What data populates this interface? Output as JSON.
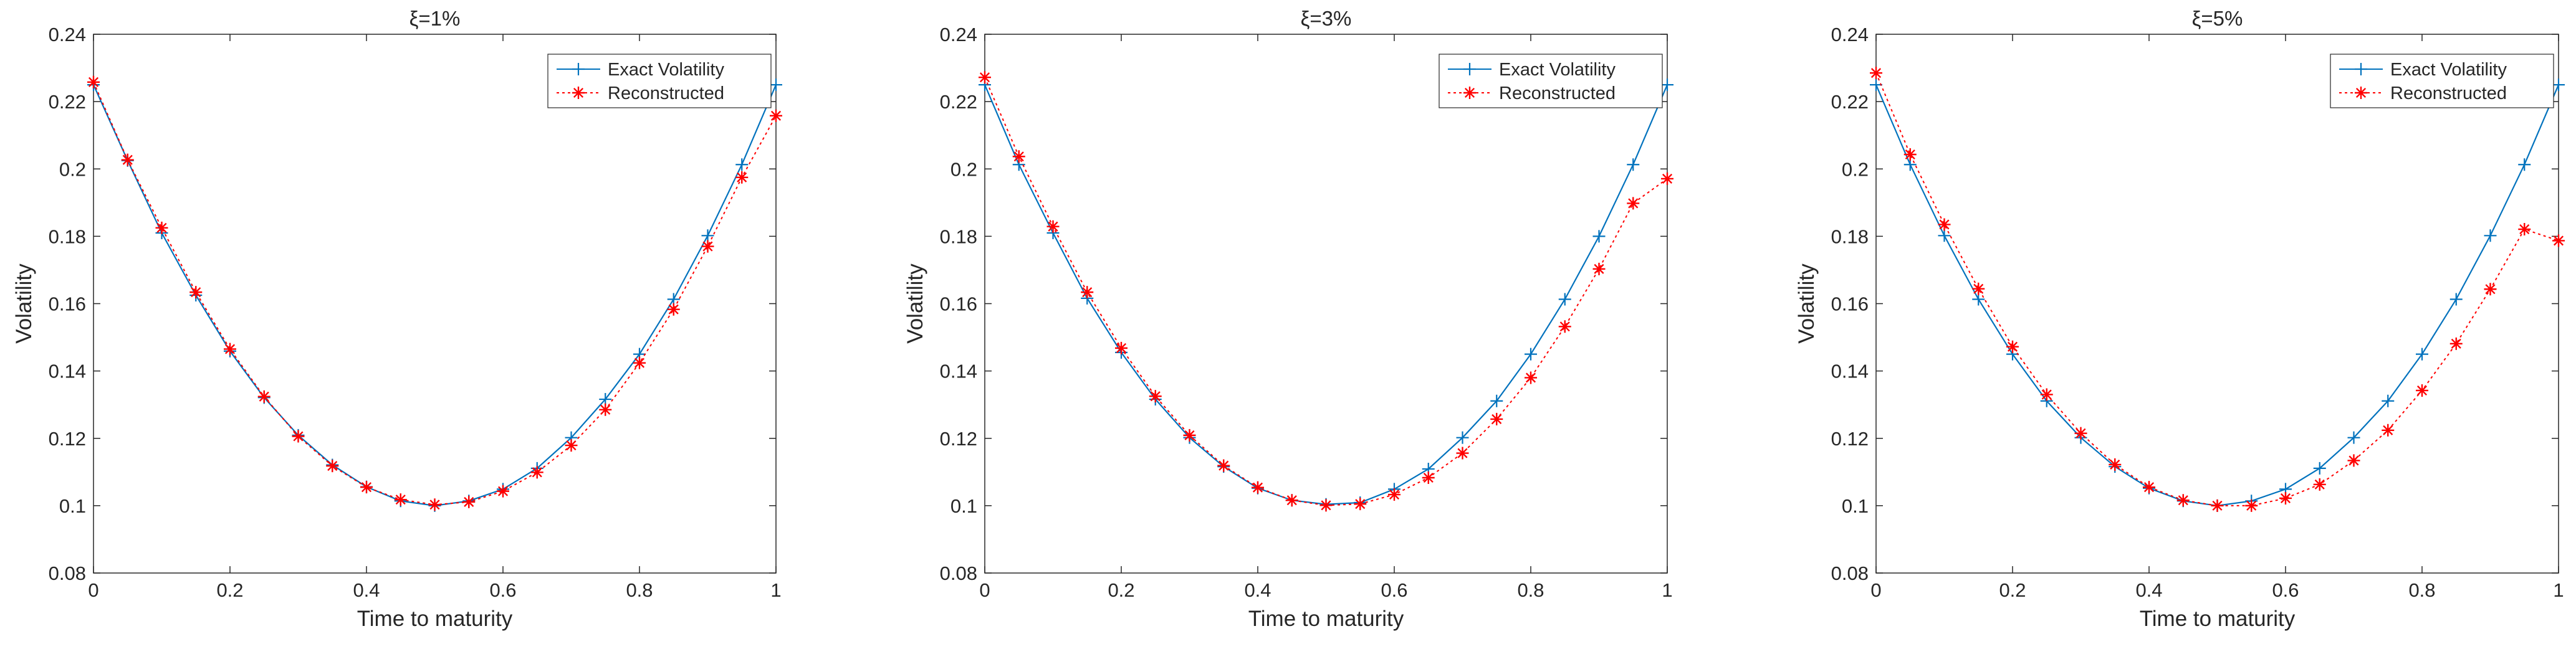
{
  "chart_data": [
    {
      "type": "line",
      "title": "ξ=1%",
      "xlabel": "Time to maturity",
      "ylabel": "Volatility",
      "xlim": [
        0,
        1
      ],
      "ylim": [
        0.08,
        0.24
      ],
      "xticks": [
        "0",
        "0.2",
        "0.4",
        "0.6",
        "0.8",
        "1"
      ],
      "yticks": [
        "0.08",
        "0.1",
        "0.12",
        "0.14",
        "0.16",
        "0.18",
        "0.2",
        "0.22",
        "0.24"
      ],
      "legend_position": "top-right",
      "x": [
        0,
        0.05,
        0.1,
        0.15,
        0.2,
        0.25,
        0.3,
        0.35,
        0.4,
        0.45,
        0.5,
        0.55,
        0.6,
        0.65,
        0.7,
        0.75,
        0.8,
        0.85,
        0.9,
        0.95,
        1
      ],
      "series": [
        {
          "name": "Exact Volatility",
          "color": "#0072BD",
          "marker": "plus",
          "line": "solid",
          "values": [
            0.225,
            0.2025,
            0.181,
            0.1625,
            0.1459,
            0.1321,
            0.1209,
            0.1121,
            0.1056,
            0.1014,
            0.1,
            0.1014,
            0.1049,
            0.1111,
            0.1202,
            0.1316,
            0.145,
            0.1613,
            0.1802,
            0.2013,
            0.225
          ]
        },
        {
          "name": "Reconstructed",
          "color": "#FF0000",
          "marker": "asterisk",
          "line": "dotted",
          "values": [
            0.2258,
            0.2027,
            0.1825,
            0.1634,
            0.1465,
            0.1324,
            0.1206,
            0.1118,
            0.1055,
            0.1018,
            0.1003,
            0.1011,
            0.1043,
            0.1099,
            0.1179,
            0.1285,
            0.1424,
            0.1583,
            0.177,
            0.1975,
            0.2158
          ]
        }
      ]
    },
    {
      "type": "line",
      "title": "ξ=3%",
      "xlabel": "Time to maturity",
      "ylabel": "Volatility",
      "xlim": [
        0,
        1
      ],
      "ylim": [
        0.08,
        0.24
      ],
      "xticks": [
        "0",
        "0.2",
        "0.4",
        "0.6",
        "0.8",
        "1"
      ],
      "yticks": [
        "0.08",
        "0.1",
        "0.12",
        "0.14",
        "0.16",
        "0.18",
        "0.2",
        "0.22",
        "0.24"
      ],
      "legend_position": "top-right",
      "x": [
        0,
        0.05,
        0.1,
        0.15,
        0.2,
        0.25,
        0.3,
        0.35,
        0.4,
        0.45,
        0.5,
        0.55,
        0.6,
        0.65,
        0.7,
        0.75,
        0.8,
        0.85,
        0.9,
        0.95,
        1
      ],
      "series": [
        {
          "name": "Exact Volatility",
          "color": "#0072BD",
          "marker": "plus",
          "line": "solid",
          "values": [
            0.225,
            0.2013,
            0.181,
            0.1616,
            0.1455,
            0.1316,
            0.1202,
            0.1116,
            0.1052,
            0.1016,
            0.1004,
            0.1009,
            0.1049,
            0.1109,
            0.1202,
            0.1311,
            0.145,
            0.1613,
            0.18,
            0.2013,
            0.225
          ]
        },
        {
          "name": "Reconstructed",
          "color": "#FF0000",
          "marker": "asterisk",
          "line": "dotted",
          "values": [
            0.2272,
            0.2037,
            0.1829,
            0.1634,
            0.1468,
            0.1325,
            0.1209,
            0.1119,
            0.1054,
            0.1016,
            0.1001,
            0.1005,
            0.1033,
            0.1083,
            0.1156,
            0.1257,
            0.138,
            0.1532,
            0.1703,
            0.1898,
            0.1971
          ]
        }
      ]
    },
    {
      "type": "line",
      "title": "ξ=5%",
      "xlabel": "Time to maturity",
      "ylabel": "Volatility",
      "xlim": [
        0,
        1
      ],
      "ylim": [
        0.08,
        0.24
      ],
      "xticks": [
        "0",
        "0.2",
        "0.4",
        "0.6",
        "0.8",
        "1"
      ],
      "yticks": [
        "0.08",
        "0.1",
        "0.12",
        "0.14",
        "0.16",
        "0.18",
        "0.2",
        "0.22",
        "0.24"
      ],
      "legend_position": "top-right",
      "x": [
        0,
        0.05,
        0.1,
        0.15,
        0.2,
        0.25,
        0.3,
        0.35,
        0.4,
        0.45,
        0.5,
        0.55,
        0.6,
        0.65,
        0.7,
        0.75,
        0.8,
        0.85,
        0.9,
        0.95,
        1
      ],
      "series": [
        {
          "name": "Exact Volatility",
          "color": "#0072BD",
          "marker": "plus",
          "line": "solid",
          "values": [
            0.225,
            0.2013,
            0.1802,
            0.1613,
            0.145,
            0.1311,
            0.1202,
            0.1116,
            0.1052,
            0.1014,
            0.1,
            0.1014,
            0.1049,
            0.1111,
            0.1202,
            0.1311,
            0.145,
            0.1613,
            0.1802,
            0.2013,
            0.225
          ]
        },
        {
          "name": "Reconstructed",
          "color": "#FF0000",
          "marker": "asterisk",
          "line": "dotted",
          "values": [
            0.2285,
            0.2043,
            0.1835,
            0.1644,
            0.1472,
            0.133,
            0.1215,
            0.1122,
            0.1055,
            0.1016,
            0.1,
            0.1,
            0.1022,
            0.1063,
            0.1134,
            0.1224,
            0.1342,
            0.1481,
            0.1643,
            0.1821,
            0.1787
          ]
        }
      ]
    }
  ]
}
